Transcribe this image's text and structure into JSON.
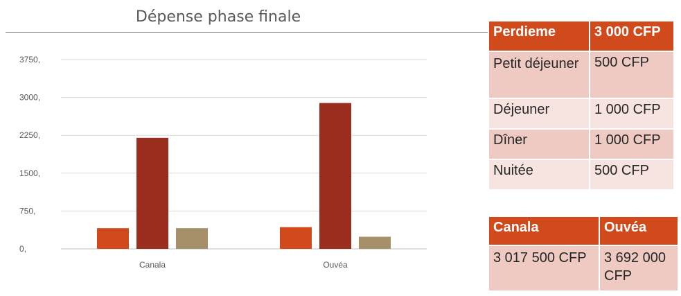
{
  "chart_data": {
    "type": "bar",
    "title": "Dépense phase finale",
    "categories": [
      "Canala",
      "Ouvéa"
    ],
    "series": [
      {
        "values": [
          410,
          430
        ],
        "color": "#d04a1c"
      },
      {
        "values": [
          2200,
          2890
        ],
        "color": "#9b2d1f"
      },
      {
        "values": [
          410,
          240
        ],
        "color": "#a6906a"
      }
    ],
    "y_ticks": [
      0,
      750,
      1500,
      2250,
      3000,
      3750
    ],
    "y_tick_labels": [
      "0,",
      "750,",
      "1500,",
      "2250,",
      "3000,",
      "3750,"
    ],
    "ylim": [
      0,
      3750
    ],
    "grid": true,
    "legend": false
  },
  "perdiem_table": {
    "header": [
      "Perdieme",
      "3 000 CFP"
    ],
    "rows": [
      [
        "Petit déjeuner",
        "500 CFP"
      ],
      [
        "Déjeuner",
        "1 000 CFP"
      ],
      [
        "Dîner",
        "1 000 CFP"
      ],
      [
        "Nuitée",
        "500 CFP"
      ]
    ]
  },
  "totals_table": {
    "header": [
      "Canala",
      "Ouvéa"
    ],
    "rows": [
      [
        "3 017 500 CFP",
        "3 692 000 CFP"
      ]
    ]
  }
}
